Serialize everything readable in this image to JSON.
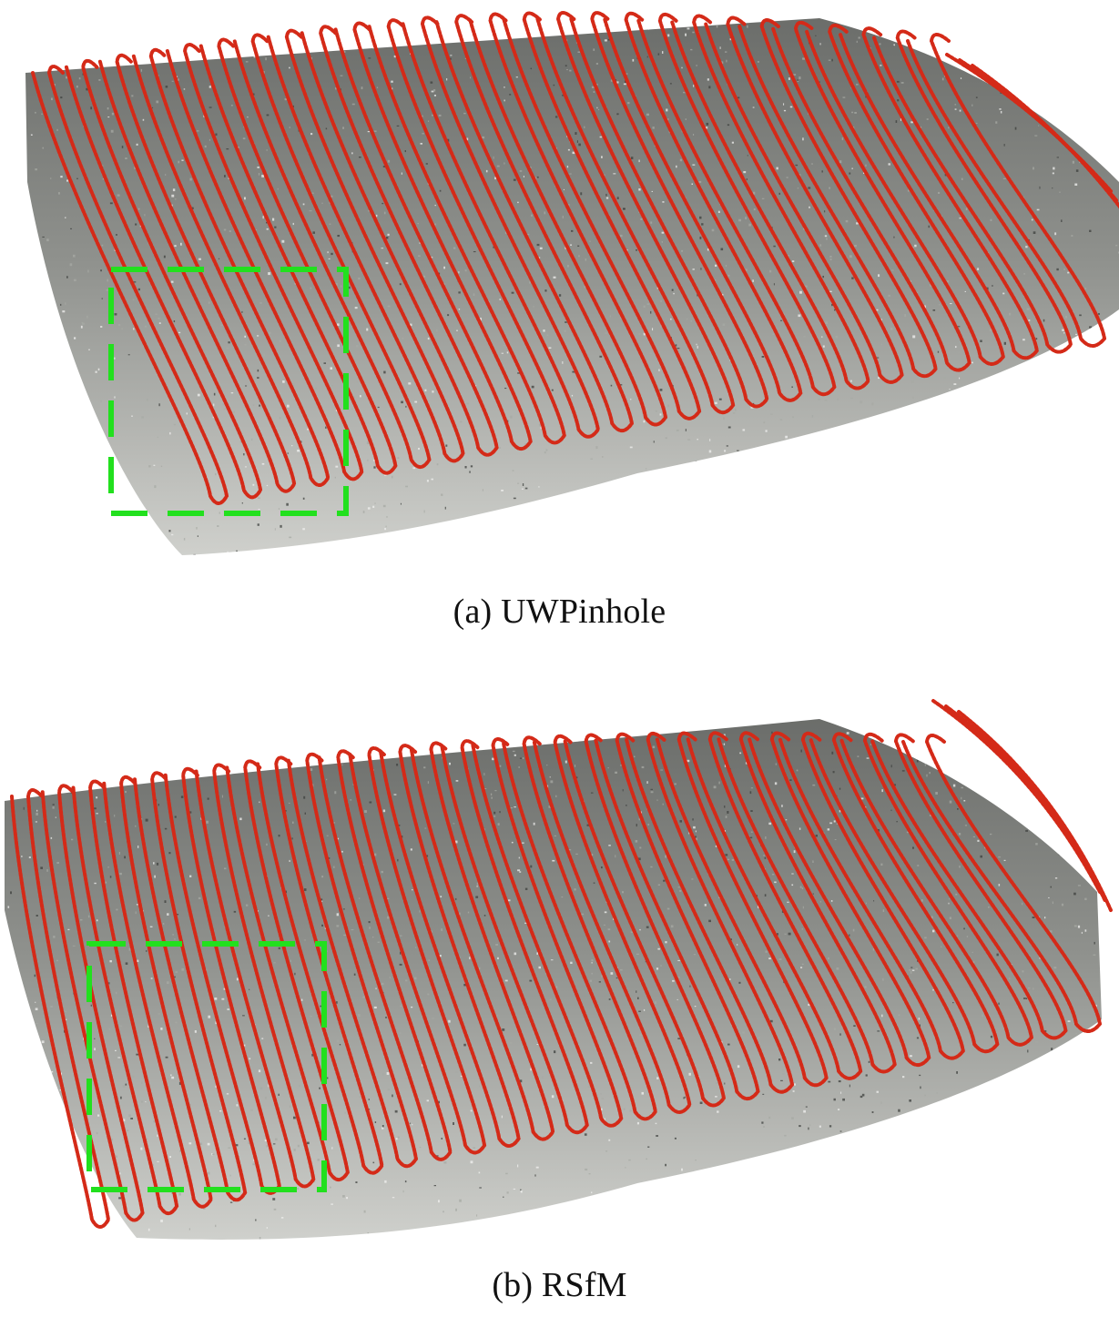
{
  "figure": {
    "panels": [
      {
        "caption": "(a) UWPinhole"
      },
      {
        "caption": "(b) RSfM"
      }
    ]
  },
  "colors": {
    "trajectory": "#d42a18",
    "highlight_box": "#22e01e",
    "terrain_dark": "#6b6d6a",
    "terrain_light": "#cfd0cc"
  }
}
